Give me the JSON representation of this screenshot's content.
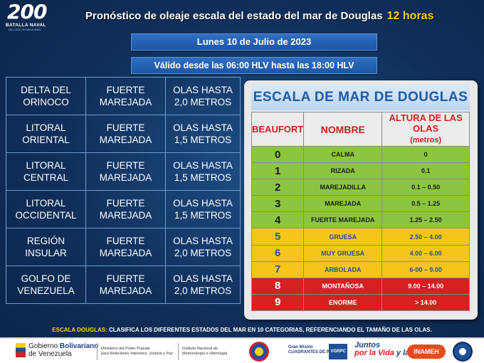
{
  "header": {
    "logo_number": "200",
    "logo_text": "BATALLA NAVAL",
    "logo_subtext": "DEL LAGO DE MARACAIBO",
    "title": "Pronóstico de oleaje escala del estado del mar de Douglas",
    "title_highlight": "12 horas",
    "date": "Lunes 10 de Julio de 2023",
    "validity": "Válido desde las 06:00 HLV hasta las 18:00 HLV"
  },
  "regions": [
    {
      "zone": "DELTA DEL ORINOCO",
      "state": "FUERTE MAREJADA",
      "waves": "OLAS HASTA 2,0 METROS"
    },
    {
      "zone": "LITORAL ORIENTAL",
      "state": "FUERTE MAREJADA",
      "waves": "OLAS HASTA 1,5 METROS"
    },
    {
      "zone": "LITORAL CENTRAL",
      "state": "FUERTE MAREJADA",
      "waves": "OLAS HASTA 1,5 METROS"
    },
    {
      "zone": "LITORAL OCCIDENTAL",
      "state": "FUERTE MAREJADA",
      "waves": "OLAS HASTA 1,5 METROS"
    },
    {
      "zone": "REGIÓN INSULAR",
      "state": "FUERTE MAREJADA",
      "waves": "OLAS HASTA 2,0 METROS"
    },
    {
      "zone": "GOLFO DE VENEZUELA",
      "state": "FUERTE MAREJADA",
      "waves": "OLAS HASTA 2,0 METROS"
    }
  ],
  "scale": {
    "title": "ESCALA DE MAR DE DOUGLAS",
    "col_beaufort": "BEAUFORT",
    "col_name": "NOMBRE",
    "col_height": "ALTURA DE LAS OLAS",
    "col_height_unit": "(metros)",
    "rows": [
      {
        "n": "0",
        "name": "CALMA",
        "height": "0",
        "color": "#8cc63f"
      },
      {
        "n": "1",
        "name": "RIZADA",
        "height": "0.1",
        "color": "#8cc63f"
      },
      {
        "n": "2",
        "name": "MAREJADILLA",
        "height": "0.1 – 0.50",
        "color": "#8cc63f"
      },
      {
        "n": "3",
        "name": "MAREJADA",
        "height": "0.5 – 1.25",
        "color": "#8cc63f"
      },
      {
        "n": "4",
        "name": "FUERTE MAREJADA",
        "height": "1.25 – 2.50",
        "color": "#8cc63f"
      },
      {
        "n": "5",
        "name": "GRUESA",
        "height": "2.50 – 4.00",
        "color": "#f7c41a"
      },
      {
        "n": "6",
        "name": "MUY GRUESA",
        "height": "4.00 – 6.00",
        "color": "#f7c41a"
      },
      {
        "n": "7",
        "name": "ARBOLADA",
        "height": "6-00 – 9.00",
        "color": "#f7c41a"
      },
      {
        "n": "8",
        "name": "MONTAÑOSA",
        "height": "9.00 – 14.00",
        "color": "#d72020"
      },
      {
        "n": "9",
        "name": "ENORME",
        "height": "> 14.00",
        "color": "#d72020"
      }
    ]
  },
  "footnote": {
    "key": "ESCALA DOUGLAS:",
    "text": "CLASIFICA LOS DIFERENTES ESTADOS DEL MAR EN 10 CATEGORIAS, REFERENCIANDO EL TAMAÑO DE LAS OLAS."
  },
  "footer": {
    "gob_1": "Gobierno",
    "gob_2": "Bolivariano",
    "gob_3": "de Venezuela",
    "ministry_1": "Ministerio del Poder Popular",
    "ministry_2": "para Relaciones Interiores, Justicia y Paz",
    "inst_1": "Instituto Nacional de",
    "inst_2": "Meteorología e Hidrología",
    "cuadrantes_1": "Gran Misión",
    "cuadrantes_2": "CUADRANTES DE PAZ",
    "vgrpc": "VGRPC",
    "juntos_1": "Juntos",
    "juntos_2": "por la Vida",
    "juntos_3": "y la Paz",
    "inameh": "INAMEH"
  }
}
